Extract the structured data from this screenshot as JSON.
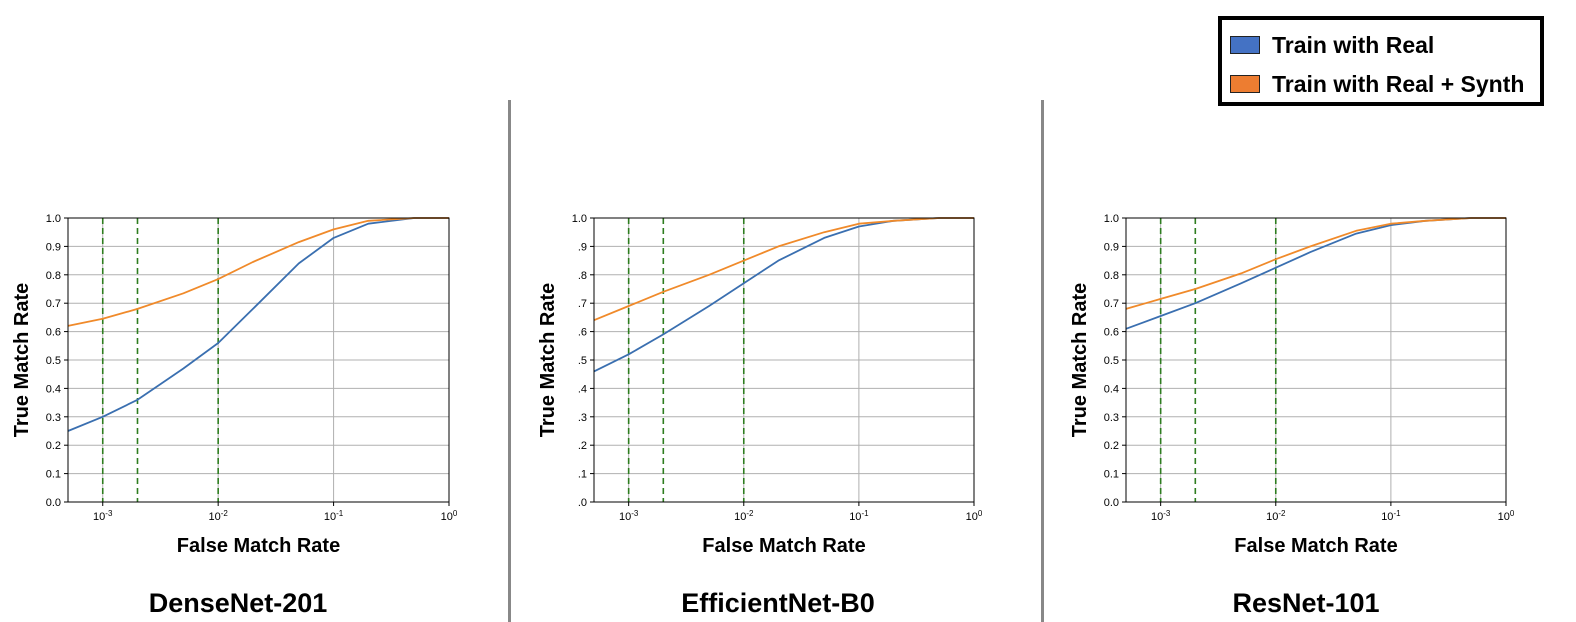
{
  "legend": {
    "items": [
      {
        "label": "Train with Real",
        "color": "#4472c4"
      },
      {
        "label": "Train with Real + Synth",
        "color": "#ed7d31"
      }
    ]
  },
  "colors": {
    "real": "#3a6fb0",
    "synth": "#f08a2a",
    "threshold": "#2e7d1f",
    "grid": "#b0b0b0"
  },
  "chart_data": [
    {
      "type": "line",
      "title": "DenseNet-201",
      "xlabel": "False Match Rate",
      "ylabel": "True Match Rate",
      "xscale": "log",
      "xlim": [
        0.0005,
        1
      ],
      "ylim": [
        0,
        1
      ],
      "xticks": [
        0.001,
        0.01,
        0.1,
        1
      ],
      "xticklabels": [
        "10-3",
        "10-2",
        "10-1",
        "100"
      ],
      "yticks": [
        0.0,
        0.1,
        0.2,
        0.3,
        0.4,
        0.5,
        0.6,
        0.7,
        0.8,
        0.9,
        1.0
      ],
      "yticklabels": [
        "0.0",
        "0.1",
        "0.2",
        "0.3",
        "0.4",
        "0.5",
        "0.6",
        "0.7",
        "0.8",
        "0.9",
        "1.0"
      ],
      "grid": true,
      "vlines": [
        0.001,
        0.002,
        0.01
      ],
      "series": [
        {
          "name": "Train with Real",
          "x": [
            0.0005,
            0.001,
            0.002,
            0.005,
            0.01,
            0.02,
            0.05,
            0.1,
            0.2,
            0.5,
            1
          ],
          "y": [
            0.25,
            0.3,
            0.36,
            0.47,
            0.56,
            0.68,
            0.84,
            0.93,
            0.98,
            1.0,
            1.0
          ]
        },
        {
          "name": "Train with Real + Synth",
          "x": [
            0.0005,
            0.001,
            0.002,
            0.005,
            0.01,
            0.02,
            0.05,
            0.1,
            0.2,
            0.5,
            1
          ],
          "y": [
            0.62,
            0.645,
            0.68,
            0.735,
            0.785,
            0.845,
            0.915,
            0.96,
            0.99,
            1.0,
            1.0
          ]
        }
      ]
    },
    {
      "type": "line",
      "title": "EfficientNet-B0",
      "xlabel": "False Match Rate",
      "ylabel": "True Match Rate",
      "xscale": "log",
      "xlim": [
        0.0005,
        1
      ],
      "ylim": [
        0,
        1
      ],
      "xticks": [
        0.001,
        0.01,
        0.1,
        1
      ],
      "xticklabels": [
        "10-3",
        "10-2",
        "10-1",
        "100"
      ],
      "yticks": [
        0.0,
        0.1,
        0.2,
        0.3,
        0.4,
        0.5,
        0.6,
        0.7,
        0.8,
        0.9,
        1.0
      ],
      "yticklabels": [
        ".0",
        ".1",
        ".2",
        ".3",
        ".4",
        ".5",
        ".6",
        ".7",
        ".8",
        ".9",
        "1.0"
      ],
      "grid": true,
      "vlines": [
        0.001,
        0.002,
        0.01
      ],
      "series": [
        {
          "name": "Train with Real",
          "x": [
            0.0005,
            0.001,
            0.002,
            0.005,
            0.01,
            0.02,
            0.05,
            0.1,
            0.2,
            0.5,
            1
          ],
          "y": [
            0.46,
            0.52,
            0.59,
            0.69,
            0.77,
            0.85,
            0.93,
            0.97,
            0.99,
            1.0,
            1.0
          ]
        },
        {
          "name": "Train with Real + Synth",
          "x": [
            0.0005,
            0.001,
            0.002,
            0.005,
            0.01,
            0.02,
            0.05,
            0.1,
            0.2,
            0.5,
            1
          ],
          "y": [
            0.64,
            0.69,
            0.74,
            0.8,
            0.85,
            0.9,
            0.95,
            0.98,
            0.99,
            1.0,
            1.0
          ]
        }
      ]
    },
    {
      "type": "line",
      "title": "ResNet-101",
      "xlabel": "False Match Rate",
      "ylabel": "True Match Rate",
      "xscale": "log",
      "xlim": [
        0.0005,
        1
      ],
      "ylim": [
        0,
        1
      ],
      "xticks": [
        0.001,
        0.01,
        0.1,
        1
      ],
      "xticklabels": [
        "10-3",
        "10-2",
        "10-1",
        "100"
      ],
      "yticks": [
        0.0,
        0.1,
        0.2,
        0.3,
        0.4,
        0.5,
        0.6,
        0.7,
        0.8,
        0.9,
        1.0
      ],
      "yticklabels": [
        "0.0",
        "0.1",
        "0.2",
        "0.3",
        "0.4",
        "0.5",
        "0.6",
        "0.7",
        "0.8",
        "0.9",
        "1.0"
      ],
      "grid": true,
      "vlines": [
        0.001,
        0.002,
        0.01
      ],
      "series": [
        {
          "name": "Train with Real",
          "x": [
            0.0005,
            0.001,
            0.002,
            0.005,
            0.01,
            0.02,
            0.05,
            0.1,
            0.2,
            0.5,
            1
          ],
          "y": [
            0.61,
            0.655,
            0.7,
            0.77,
            0.825,
            0.88,
            0.945,
            0.975,
            0.99,
            1.0,
            1.0
          ]
        },
        {
          "name": "Train with Real + Synth",
          "x": [
            0.0005,
            0.001,
            0.002,
            0.005,
            0.01,
            0.02,
            0.05,
            0.1,
            0.2,
            0.5,
            1
          ],
          "y": [
            0.68,
            0.715,
            0.75,
            0.805,
            0.855,
            0.9,
            0.955,
            0.98,
            0.99,
            1.0,
            1.0
          ]
        }
      ]
    }
  ]
}
